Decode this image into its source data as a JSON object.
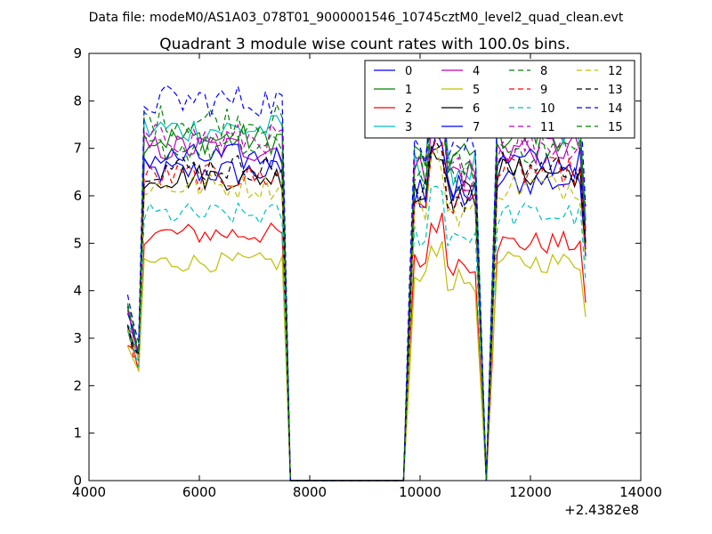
{
  "chart_data": {
    "type": "line",
    "suptitle": "Data file: modeM0/AS1A03_078T01_9000001546_10745cztM0_level2_quad_clean.evt",
    "title": "Quadrant 3 module wise count rates with 100.0s bins.",
    "xlabel": "",
    "ylabel": "",
    "x_offset_label": "+2.4382e8",
    "xlim": [
      4000,
      14000
    ],
    "ylim": [
      0,
      9
    ],
    "x_ticks": [
      4000,
      6000,
      8000,
      10000,
      12000,
      14000
    ],
    "y_ticks": [
      0,
      1,
      2,
      3,
      4,
      5,
      6,
      7,
      8,
      9
    ],
    "x_tick_labels": [
      "4000",
      "6000",
      "8000",
      "10000",
      "12000",
      "14000"
    ],
    "y_tick_labels": [
      "0",
      "1",
      "2",
      "3",
      "4",
      "5",
      "6",
      "7",
      "8",
      "9"
    ],
    "grid": false,
    "legend_placement": "top-right, 4 columns",
    "segments": [
      {
        "x_start": 4700,
        "x_end": 7550,
        "step": 100
      },
      {
        "x_start": 9800,
        "x_end": 11000,
        "step": 100
      },
      {
        "x_start": 11300,
        "x_end": 13000,
        "step": 100
      }
    ],
    "gap_x": [
      7650,
      9700,
      11200
    ],
    "series": [
      {
        "name": "0",
        "color": "#0000ff",
        "dash": "solid",
        "levels": [
          3.6,
          6.5,
          6.0,
          6.3
        ]
      },
      {
        "name": "1",
        "color": "#008000",
        "dash": "solid",
        "levels": [
          3.3,
          7.2,
          6.8,
          7.3
        ]
      },
      {
        "name": "2",
        "color": "#ff0000",
        "dash": "solid",
        "levels": [
          2.8,
          5.2,
          4.6,
          5.0
        ]
      },
      {
        "name": "3",
        "color": "#00bfbf",
        "dash": "solid",
        "levels": [
          3.4,
          7.4,
          6.6,
          7.4
        ]
      },
      {
        "name": "4",
        "color": "#bf00bf",
        "dash": "solid",
        "levels": [
          3.3,
          7.0,
          6.5,
          7.0
        ]
      },
      {
        "name": "5",
        "color": "#bfbf00",
        "dash": "solid",
        "levels": [
          2.6,
          4.6,
          4.2,
          4.6
        ]
      },
      {
        "name": "6",
        "color": "#000000",
        "dash": "solid",
        "levels": [
          3.2,
          6.4,
          6.0,
          6.5
        ]
      },
      {
        "name": "7",
        "color": "#0000ff",
        "dash": "solid",
        "levels": [
          3.4,
          6.8,
          6.1,
          6.7
        ]
      },
      {
        "name": "8",
        "color": "#008000",
        "dash": "dashed",
        "levels": [
          3.5,
          7.6,
          6.6,
          7.6
        ]
      },
      {
        "name": "9",
        "color": "#ff0000",
        "dash": "dashed",
        "levels": [
          3.1,
          6.4,
          5.9,
          6.5
        ]
      },
      {
        "name": "10",
        "color": "#00bfbf",
        "dash": "dashed",
        "levels": [
          3.0,
          5.6,
          5.2,
          5.6
        ]
      },
      {
        "name": "11",
        "color": "#bf00bf",
        "dash": "dashed",
        "levels": [
          3.4,
          7.2,
          6.5,
          7.1
        ]
      },
      {
        "name": "12",
        "color": "#bfbf00",
        "dash": "dashed",
        "levels": [
          3.2,
          6.2,
          5.7,
          6.2
        ]
      },
      {
        "name": "13",
        "color": "#000000",
        "dash": "dashed",
        "levels": [
          3.3,
          6.6,
          6.0,
          6.6
        ]
      },
      {
        "name": "14",
        "color": "#0000ff",
        "dash": "dashed",
        "levels": [
          3.7,
          8.0,
          7.1,
          7.7
        ]
      },
      {
        "name": "15",
        "color": "#008000",
        "dash": "dashed",
        "levels": [
          3.5,
          7.0,
          6.4,
          7.0
        ]
      }
    ]
  }
}
